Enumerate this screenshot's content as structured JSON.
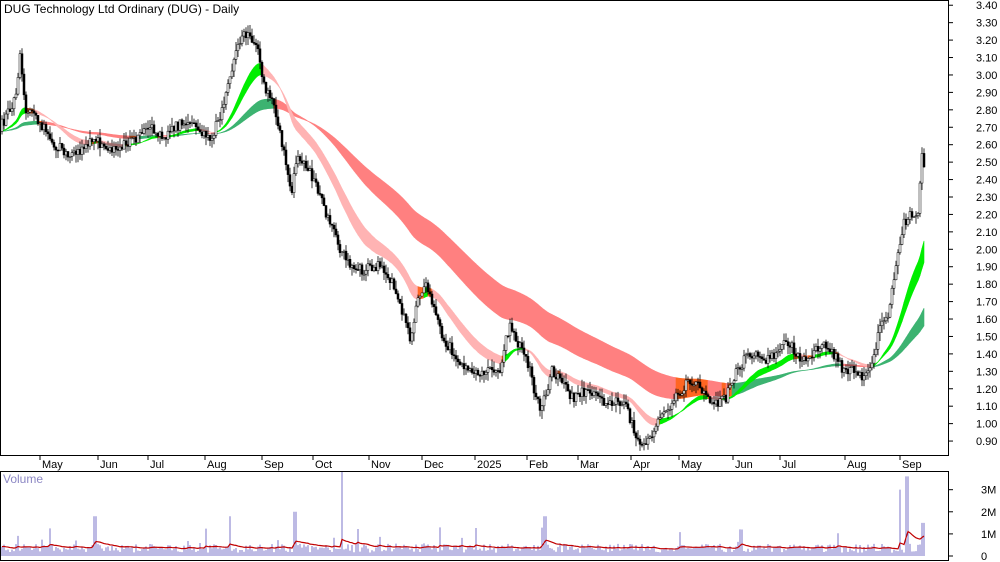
{
  "chart_data": {
    "type": "candlestick",
    "title": "DUG Technology Ltd Ordinary (DUG) - Daily",
    "price_axis": {
      "ylim": [
        0.82,
        3.43
      ],
      "ticks": [
        "3.40",
        "3.30",
        "3.20",
        "3.10",
        "3.00",
        "2.90",
        "2.80",
        "2.70",
        "2.60",
        "2.50",
        "2.40",
        "2.30",
        "2.20",
        "2.10",
        "2.00",
        "1.90",
        "1.80",
        "1.70",
        "1.60",
        "1.50",
        "1.40",
        "1.30",
        "1.20",
        "1.10",
        "1.00",
        "0.90"
      ]
    },
    "months": [
      "May",
      "Jun",
      "Jul",
      "Aug",
      "Sep",
      "Oct",
      "Nov",
      "Dec",
      "2025",
      "Feb",
      "Mar",
      "Apr",
      "May",
      "Jun",
      "Jul",
      "Aug",
      "Sep"
    ],
    "price_anchors": [
      [
        0,
        2.7
      ],
      [
        8,
        2.78
      ],
      [
        15,
        2.85
      ],
      [
        20,
        3.1
      ],
      [
        25,
        2.8
      ],
      [
        35,
        2.75
      ],
      [
        45,
        2.68
      ],
      [
        55,
        2.6
      ],
      [
        68,
        2.55
      ],
      [
        80,
        2.55
      ],
      [
        95,
        2.65
      ],
      [
        108,
        2.55
      ],
      [
        120,
        2.6
      ],
      [
        135,
        2.62
      ],
      [
        150,
        2.7
      ],
      [
        165,
        2.65
      ],
      [
        180,
        2.72
      ],
      [
        195,
        2.7
      ],
      [
        210,
        2.62
      ],
      [
        222,
        2.8
      ],
      [
        232,
        3.05
      ],
      [
        240,
        3.2
      ],
      [
        248,
        3.25
      ],
      [
        256,
        3.18
      ],
      [
        264,
        2.95
      ],
      [
        272,
        2.85
      ],
      [
        280,
        2.68
      ],
      [
        287,
        2.45
      ],
      [
        292,
        2.35
      ],
      [
        298,
        2.55
      ],
      [
        305,
        2.48
      ],
      [
        312,
        2.42
      ],
      [
        320,
        2.3
      ],
      [
        330,
        2.15
      ],
      [
        340,
        2.0
      ],
      [
        352,
        1.9
      ],
      [
        362,
        1.88
      ],
      [
        372,
        1.9
      ],
      [
        382,
        1.9
      ],
      [
        392,
        1.82
      ],
      [
        400,
        1.7
      ],
      [
        410,
        1.48
      ],
      [
        418,
        1.7
      ],
      [
        426,
        1.78
      ],
      [
        434,
        1.65
      ],
      [
        442,
        1.5
      ],
      [
        452,
        1.42
      ],
      [
        462,
        1.35
      ],
      [
        472,
        1.32
      ],
      [
        482,
        1.28
      ],
      [
        492,
        1.3
      ],
      [
        500,
        1.32
      ],
      [
        510,
        1.58
      ],
      [
        518,
        1.45
      ],
      [
        526,
        1.4
      ],
      [
        534,
        1.2
      ],
      [
        540,
        1.1
      ],
      [
        546,
        1.15
      ],
      [
        552,
        1.3
      ],
      [
        560,
        1.25
      ],
      [
        572,
        1.15
      ],
      [
        584,
        1.18
      ],
      [
        596,
        1.15
      ],
      [
        608,
        1.12
      ],
      [
        618,
        1.12
      ],
      [
        628,
        1.08
      ],
      [
        636,
        0.9
      ],
      [
        644,
        0.88
      ],
      [
        652,
        0.95
      ],
      [
        660,
        1.05
      ],
      [
        670,
        1.1
      ],
      [
        680,
        1.18
      ],
      [
        690,
        1.25
      ],
      [
        698,
        1.22
      ],
      [
        706,
        1.15
      ],
      [
        716,
        1.12
      ],
      [
        726,
        1.15
      ],
      [
        736,
        1.3
      ],
      [
        746,
        1.38
      ],
      [
        756,
        1.4
      ],
      [
        766,
        1.36
      ],
      [
        776,
        1.4
      ],
      [
        786,
        1.48
      ],
      [
        794,
        1.42
      ],
      [
        802,
        1.35
      ],
      [
        812,
        1.4
      ],
      [
        822,
        1.45
      ],
      [
        832,
        1.42
      ],
      [
        842,
        1.32
      ],
      [
        852,
        1.3
      ],
      [
        862,
        1.28
      ],
      [
        872,
        1.35
      ],
      [
        880,
        1.55
      ],
      [
        888,
        1.62
      ],
      [
        896,
        1.92
      ],
      [
        904,
        2.15
      ],
      [
        912,
        2.2
      ],
      [
        918,
        2.2
      ],
      [
        922,
        2.5
      ]
    ],
    "trend_bands": [
      {
        "name": "short",
        "colors": [
          "#00ee00",
          "#ff6622",
          "#ffb3b3"
        ]
      },
      {
        "name": "long",
        "colors": [
          "#3cb371",
          "#ff6622",
          "#ff8080"
        ]
      }
    ],
    "volume": {
      "label": "Volume",
      "ylim": [
        0,
        3800000
      ],
      "ticks": [
        "3M",
        "2M",
        "1M",
        "0"
      ],
      "spikes": [
        [
          95,
          1.8
        ],
        [
          230,
          1.8
        ],
        [
          295,
          2.0
        ],
        [
          342,
          3.8
        ],
        [
          545,
          1.8
        ],
        [
          900,
          3.0
        ],
        [
          907,
          3.6
        ],
        [
          923,
          1.5
        ]
      ],
      "bar_color": "#7b75c9",
      "average_color": "#c00000"
    },
    "colors": {
      "up": "#000000",
      "down": "#000000",
      "grid": "#000000",
      "frame": "#000000"
    }
  }
}
